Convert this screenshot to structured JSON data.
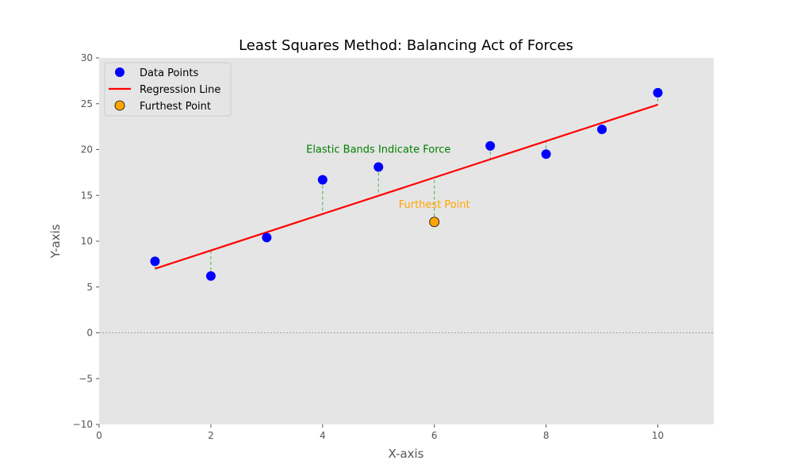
{
  "chart_data": {
    "type": "scatter",
    "title": "Least Squares Method: Balancing Act of Forces",
    "xlabel": "X-axis",
    "ylabel": "Y-axis",
    "xlim": [
      0,
      11
    ],
    "ylim": [
      -10,
      30
    ],
    "xticks": [
      0,
      2,
      4,
      6,
      8,
      10
    ],
    "yticks": [
      -10,
      -5,
      0,
      5,
      10,
      15,
      20,
      25,
      30
    ],
    "xtick_labels": [
      "0",
      "2",
      "4",
      "6",
      "8",
      "10"
    ],
    "ytick_labels": [
      "−10",
      "−5",
      "0",
      "5",
      "10",
      "15",
      "20",
      "25",
      "30"
    ],
    "grid": false,
    "legend_position": "top-left",
    "background_color": "#e5e5e5",
    "zero_line": true,
    "series": [
      {
        "name": "Data Points",
        "kind": "scatter",
        "color": "#0000ff",
        "x": [
          1,
          2,
          3,
          4,
          5,
          7,
          8,
          9,
          10
        ],
        "y": [
          7.8,
          6.2,
          10.4,
          16.7,
          18.1,
          20.4,
          19.5,
          22.2,
          26.2
        ]
      },
      {
        "name": "Regression Line",
        "kind": "line",
        "color": "#ff0000",
        "x": [
          1,
          10
        ],
        "y": [
          7.0,
          24.9
        ]
      },
      {
        "name": "Furthest Point",
        "kind": "scatter",
        "color": "#ffa500",
        "edge_color": "#000000",
        "x": [
          6
        ],
        "y": [
          12.1
        ]
      }
    ],
    "residual_color": "#2ca02c",
    "annotations": [
      {
        "text": "Elastic Bands Indicate Force",
        "x": 5.0,
        "y": 20.0,
        "color": "#008000"
      },
      {
        "text": "Furthest Point",
        "x": 6.0,
        "y": 14.0,
        "color": "#ffa500"
      }
    ]
  }
}
